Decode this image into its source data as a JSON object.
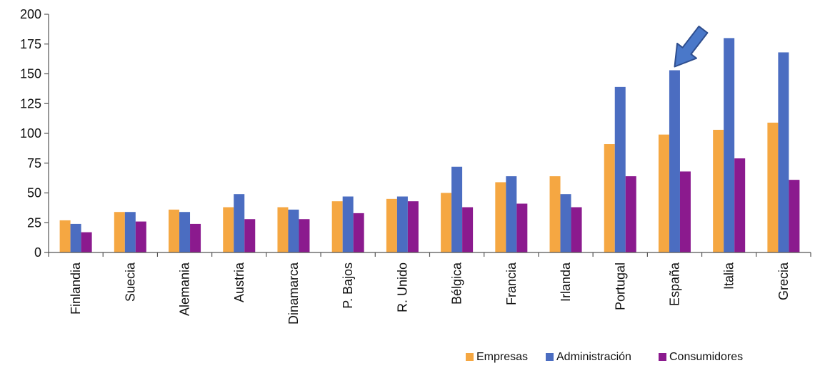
{
  "chart_data": {
    "type": "bar",
    "title": "",
    "xlabel": "",
    "ylabel": "",
    "ylim": [
      0,
      200
    ],
    "yticks": [
      0,
      25,
      50,
      75,
      100,
      125,
      150,
      175,
      200
    ],
    "grid": false,
    "legend_position": "bottom-right",
    "categories": [
      "Finlandia",
      "Suecia",
      "Alemania",
      "Austria",
      "Dinamarca",
      "P. Bajos",
      "R. Unido",
      "Bélgica",
      "Francia",
      "Irlanda",
      "Portugal",
      "España",
      "Italia",
      "Grecia"
    ],
    "series": [
      {
        "name": "Empresas",
        "color": "#F5A742",
        "values": [
          27,
          34,
          36,
          38,
          38,
          43,
          45,
          50,
          59,
          64,
          91,
          99,
          103,
          109
        ]
      },
      {
        "name": "Administración",
        "color": "#4B6DC1",
        "values": [
          24,
          34,
          34,
          49,
          36,
          47,
          47,
          72,
          64,
          49,
          139,
          153,
          180,
          168
        ]
      },
      {
        "name": "Consumidores",
        "color": "#8B1A8E",
        "values": [
          17,
          26,
          24,
          28,
          28,
          33,
          43,
          38,
          41,
          38,
          64,
          68,
          79,
          61
        ]
      }
    ],
    "annotation": {
      "shape": "arrow",
      "target_category": "España",
      "target_series": "Administración",
      "color": "#4A78C9"
    }
  }
}
